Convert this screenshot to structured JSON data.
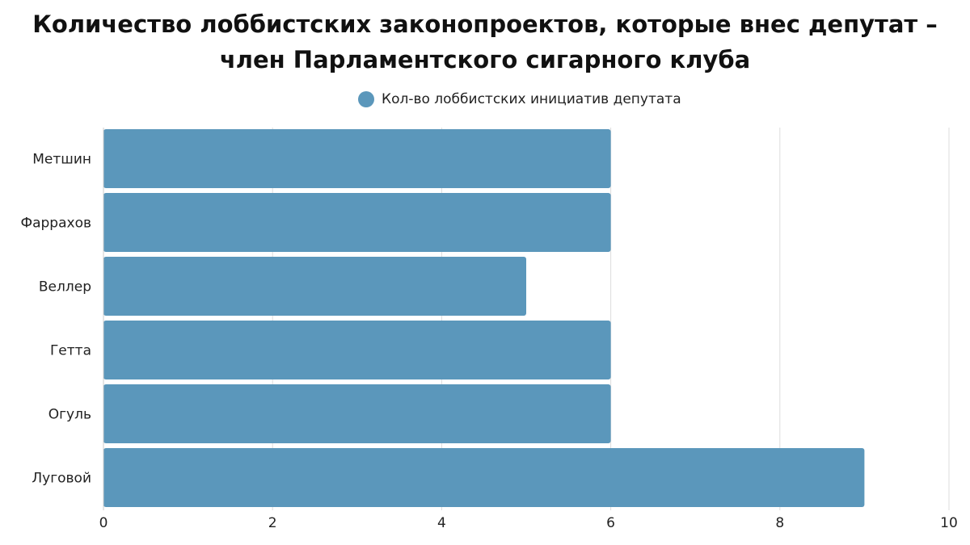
{
  "chart_data": {
    "type": "bar",
    "orientation": "horizontal",
    "title": "Количество лоббистских законопроектов, которые внес депутат – член Парламентского сигарного клуба",
    "categories": [
      "Метшин",
      "Фаррахов",
      "Веллер",
      "Гетта",
      "Огуль",
      "Луговой"
    ],
    "series": [
      {
        "name": "Кол-во лоббистских инициатив депутата",
        "color": "#5b97bb",
        "values": [
          6,
          6,
          5,
          6,
          6,
          9
        ]
      }
    ],
    "xlim": [
      0,
      10
    ],
    "xticks": [
      0,
      2,
      4,
      6,
      8,
      10
    ],
    "grid": true
  }
}
